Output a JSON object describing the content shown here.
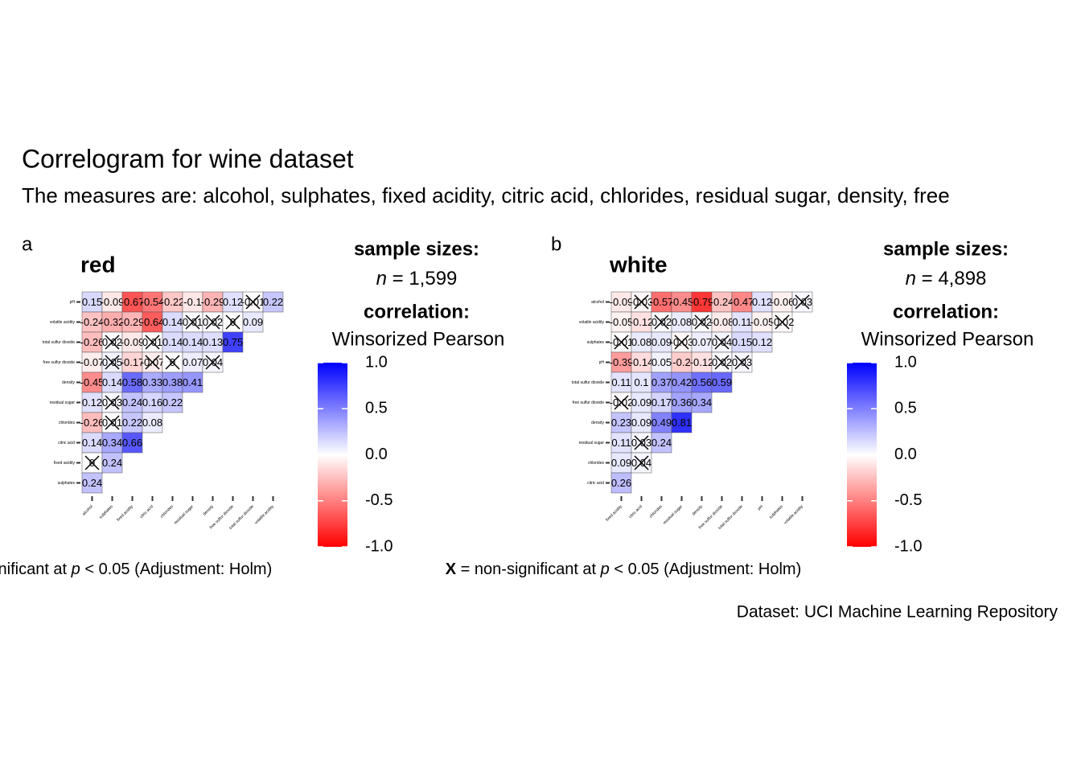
{
  "title": "Correlogram for wine dataset",
  "subtitle": "The measures are: alcohol, sulphates, fixed acidity, citric acid, chlorides, residual sugar, density, free",
  "source": "Dataset: UCI Machine Learning Repository",
  "chart_data": [
    {
      "type": "heatmap",
      "tag": "a",
      "title": "red",
      "sample_label": "sample sizes:",
      "n_symbol": "n",
      "n_text": "= 1,599",
      "x_categories": [
        "alcohol",
        "sulphates",
        "fixed acidity",
        "citric acid",
        "chlorides",
        "residual sugar",
        "density",
        "free sulfur dioxide",
        "total sulfur dioxide",
        "volatile acidity"
      ],
      "y_categories": [
        "pH",
        "volatile acidity",
        "total sulfur dioxide",
        "free sulfur dioxide",
        "density",
        "residual sugar",
        "chlorides",
        "citric acid",
        "fixed acidity",
        "sulphates"
      ],
      "values": [
        [
          0.15,
          -0.09,
          -0.67,
          -0.54,
          -0.22,
          -0.1,
          -0.29,
          0.12,
          -0.01,
          0.22
        ],
        [
          -0.24,
          -0.32,
          -0.29,
          -0.64,
          0.14,
          0.01,
          0.02,
          0,
          0.09
        ],
        [
          -0.26,
          0.02,
          -0.09,
          0.01,
          0.14,
          0.14,
          0.13,
          0.75
        ],
        [
          -0.07,
          0.05,
          -0.17,
          -0.07,
          0,
          0.07,
          0.04
        ],
        [
          -0.45,
          0.14,
          0.58,
          0.33,
          0.38,
          0.41
        ],
        [
          0.12,
          0.03,
          0.24,
          0.16,
          0.22
        ],
        [
          -0.26,
          0.01,
          0.22,
          0.08
        ],
        [
          0.14,
          0.34,
          0.66
        ],
        [
          0,
          0.24
        ],
        [
          0.24
        ]
      ],
      "crossed": [
        [
          false,
          false,
          false,
          false,
          false,
          false,
          false,
          false,
          true,
          false
        ],
        [
          false,
          false,
          false,
          false,
          false,
          true,
          true,
          true,
          false
        ],
        [
          false,
          true,
          false,
          true,
          false,
          false,
          false,
          false
        ],
        [
          false,
          true,
          false,
          true,
          true,
          false,
          true
        ],
        [
          false,
          false,
          false,
          false,
          false,
          false
        ],
        [
          false,
          true,
          false,
          false,
          false
        ],
        [
          false,
          true,
          false,
          false
        ],
        [
          false,
          false,
          false
        ],
        [
          true,
          false
        ],
        [
          false
        ]
      ],
      "caption": {
        "mark": "X",
        "text": "= non-significant at",
        "p": "p",
        "rest": "< 0.05 (Adjustment: Holm)"
      },
      "colorbar": {
        "title": "correlation:",
        "subtitle": "Winsorized Pearson",
        "lim": [
          -1,
          1
        ],
        "low": "#ff0000",
        "mid": "#ffffff",
        "high": "#0000ff",
        "ticks": [
          {
            "value": 1,
            "label": "1.0"
          },
          {
            "value": 0.5,
            "label": "0.5"
          },
          {
            "value": 0,
            "label": "0.0"
          },
          {
            "value": -0.5,
            "label": "-0.5"
          },
          {
            "value": -1,
            "label": "-1.0"
          }
        ]
      }
    },
    {
      "type": "heatmap",
      "tag": "b",
      "title": "white",
      "sample_label": "sample sizes:",
      "n_symbol": "n",
      "n_text": "= 4,898",
      "x_categories": [
        "fixed acidity",
        "citric acid",
        "chlorides",
        "residual sugar",
        "density",
        "free sulfur dioxide",
        "total sulfur dioxide",
        "pH",
        "sulphates",
        "volatile acidity"
      ],
      "y_categories": [
        "alcohol",
        "volatile acidity",
        "sulphates",
        "pH",
        "total sulfur dioxide",
        "free sulfur dioxide",
        "density",
        "residual sugar",
        "chlorides",
        "citric acid"
      ],
      "values": [
        [
          -0.09,
          -0.03,
          -0.57,
          -0.45,
          -0.79,
          -0.24,
          -0.47,
          0.12,
          -0.06,
          0.03
        ],
        [
          -0.05,
          -0.12,
          0.02,
          0.08,
          0.02,
          -0.08,
          0.11,
          -0.05,
          -0.02
        ],
        [
          -0.01,
          0.08,
          0.09,
          -0.03,
          0.07,
          0.04,
          0.15,
          0.12
        ],
        [
          -0.39,
          -0.14,
          0.05,
          -0.2,
          -0.12,
          0.02,
          0.03
        ],
        [
          0.11,
          0.1,
          0.37,
          0.42,
          0.56,
          0.59
        ],
        [
          -0.02,
          0.09,
          0.17,
          0.36,
          0.34
        ],
        [
          0.23,
          0.09,
          0.49,
          0.81
        ],
        [
          0.11,
          0.03,
          0.24
        ],
        [
          0.09,
          0.04
        ],
        [
          0.26
        ]
      ],
      "crossed": [
        [
          false,
          true,
          false,
          false,
          false,
          false,
          false,
          false,
          false,
          true
        ],
        [
          false,
          false,
          true,
          false,
          true,
          false,
          false,
          false,
          true
        ],
        [
          true,
          false,
          false,
          true,
          false,
          true,
          false,
          false
        ],
        [
          false,
          false,
          false,
          false,
          false,
          true,
          true
        ],
        [
          false,
          false,
          false,
          false,
          false,
          false
        ],
        [
          true,
          false,
          false,
          false,
          false
        ],
        [
          false,
          false,
          false,
          false
        ],
        [
          false,
          true,
          false
        ],
        [
          false,
          true
        ],
        [
          false
        ]
      ],
      "caption": {
        "mark": "X",
        "text": "= non-significant at",
        "p": "p",
        "rest": "< 0.05 (Adjustment: Holm)"
      },
      "colorbar": {
        "title": "correlation:",
        "subtitle": "Winsorized Pearson",
        "lim": [
          -1,
          1
        ],
        "low": "#ff0000",
        "mid": "#ffffff",
        "high": "#0000ff",
        "ticks": [
          {
            "value": 1,
            "label": "1.0"
          },
          {
            "value": 0.5,
            "label": "0.5"
          },
          {
            "value": 0,
            "label": "0.0"
          },
          {
            "value": -0.5,
            "label": "-0.5"
          },
          {
            "value": -1,
            "label": "-1.0"
          }
        ]
      }
    }
  ]
}
